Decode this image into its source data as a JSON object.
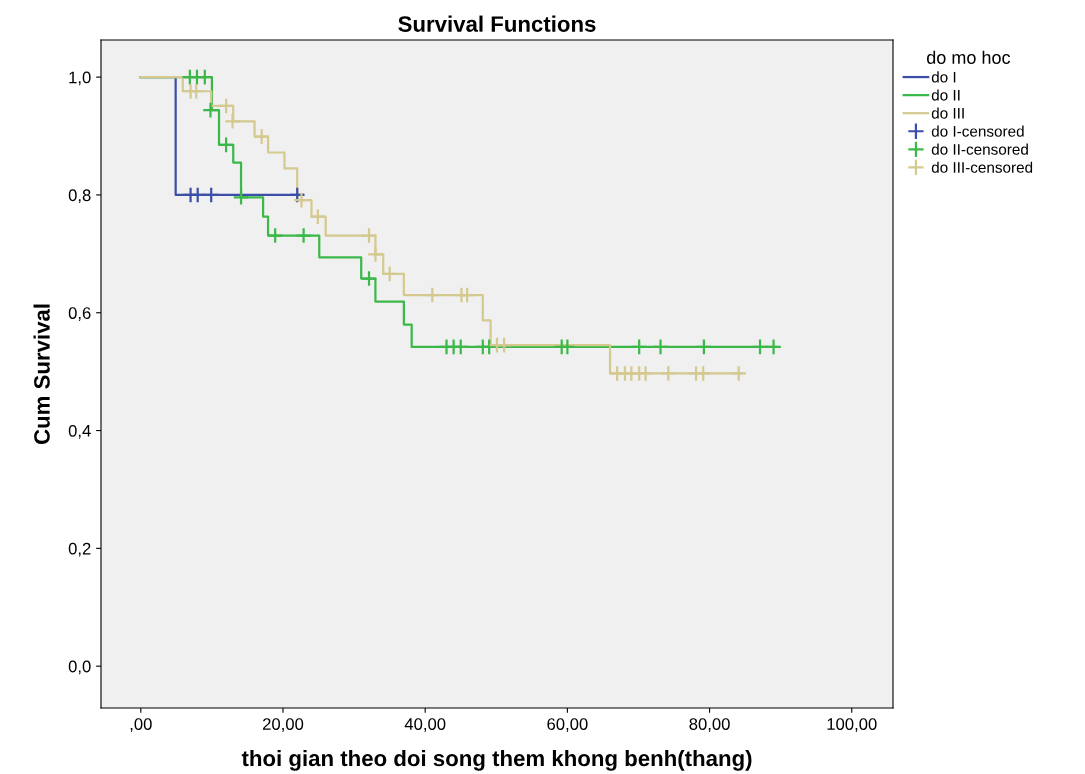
{
  "chart_data": {
    "type": "step",
    "title": "Survival Functions",
    "xlabel": "thoi gian theo doi song them khong benh(thang)",
    "ylabel": "Cum Survival",
    "legend_title": "do mo hoc",
    "legend": "top right",
    "grid": false,
    "line_style": "solid",
    "xlim": [
      -5.6,
      105.8
    ],
    "ylim": [
      -0.071,
      1.063
    ],
    "xticks": [
      {
        "value": 0,
        "label": ",00"
      },
      {
        "value": 20,
        "label": "20,00"
      },
      {
        "value": 40,
        "label": "40,00"
      },
      {
        "value": 60,
        "label": "60,00"
      },
      {
        "value": 80,
        "label": "80,00"
      },
      {
        "value": 100,
        "label": "100,00"
      }
    ],
    "yticks": [
      {
        "value": 0,
        "label": "0,0"
      },
      {
        "value": 0.2,
        "label": "0,2"
      },
      {
        "value": 0.4,
        "label": "0,4"
      },
      {
        "value": 0.6,
        "label": "0,6"
      },
      {
        "value": 0.8,
        "label": "0,8"
      },
      {
        "value": 1.0,
        "label": "1,0"
      }
    ],
    "series": [
      {
        "name": "do I",
        "color": "#3c4fa8",
        "x": [
          0,
          4.9,
          22.8
        ],
        "values": [
          1.0,
          0.8,
          0.8
        ]
      },
      {
        "name": "do II",
        "color": "#3cb84a",
        "x": [
          0,
          10.0,
          11.0,
          13.0,
          14.1,
          17.2,
          17.9,
          25.1,
          31.0,
          33.0,
          37.0,
          38.1,
          89.3
        ],
        "values": [
          1.0,
          0.944,
          0.885,
          0.855,
          0.796,
          0.763,
          0.731,
          0.694,
          0.658,
          0.619,
          0.58,
          0.542,
          0.542
        ]
      },
      {
        "name": "do III",
        "color": "#d4c98f",
        "x": [
          0,
          5.9,
          9.9,
          13.0,
          16.0,
          17.9,
          20.2,
          22.0,
          24.0,
          26.0,
          33.0,
          34.1,
          37.0,
          48.1,
          49.2,
          66.0,
          84.5
        ],
        "values": [
          1.0,
          0.976,
          0.951,
          0.925,
          0.899,
          0.872,
          0.845,
          0.791,
          0.763,
          0.731,
          0.699,
          0.666,
          0.63,
          0.587,
          0.545,
          0.497,
          0.497
        ]
      },
      {
        "name": "do I-censored",
        "type": "scatter",
        "marker": "cross",
        "color": "#3c4fa8",
        "x": [
          7.0,
          8.0,
          9.9,
          22.0
        ],
        "values": [
          0.8,
          0.8,
          0.8,
          0.8
        ]
      },
      {
        "name": "do II-censored",
        "type": "scatter",
        "marker": "cross",
        "color": "#3cb84a",
        "x": [
          6.9,
          7.9,
          9.0,
          9.8,
          12.0,
          14.1,
          18.9,
          22.9,
          32.1,
          43.0,
          44.0,
          45.0,
          48.1,
          49.0,
          59.2,
          60.0,
          70.1,
          73.1,
          79.2,
          87.1,
          89.0
        ],
        "values": [
          1.0,
          1.0,
          1.0,
          0.944,
          0.885,
          0.796,
          0.731,
          0.731,
          0.658,
          0.542,
          0.542,
          0.542,
          0.542,
          0.542,
          0.542,
          0.542,
          0.542,
          0.542,
          0.542,
          0.542,
          0.542
        ]
      },
      {
        "name": "do III-censored",
        "type": "scatter",
        "marker": "cross",
        "color": "#d4c98f",
        "x": [
          7.0,
          7.8,
          12.0,
          12.9,
          17.0,
          22.6,
          24.9,
          32.1,
          33.0,
          35.0,
          41.0,
          45.1,
          45.9,
          50.1,
          51.1,
          67.0,
          68.1,
          69.0,
          70.1,
          71.0,
          74.2,
          78.1,
          79.1,
          84.1
        ],
        "values": [
          0.976,
          0.976,
          0.951,
          0.925,
          0.899,
          0.791,
          0.763,
          0.731,
          0.699,
          0.666,
          0.63,
          0.63,
          0.63,
          0.545,
          0.545,
          0.497,
          0.497,
          0.497,
          0.497,
          0.497,
          0.497,
          0.497,
          0.497,
          0.497
        ]
      }
    ]
  }
}
